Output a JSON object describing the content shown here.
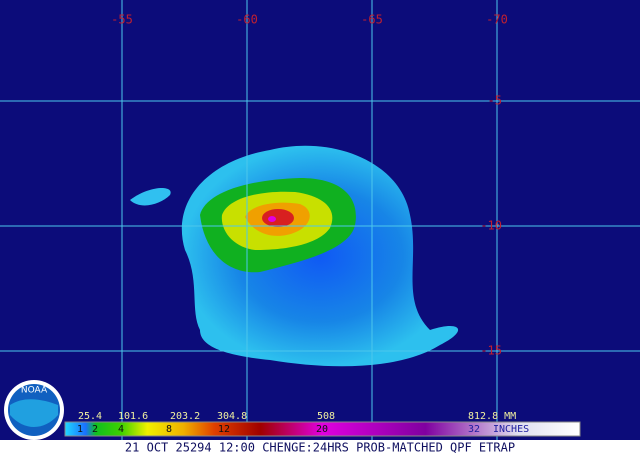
{
  "map": {
    "longitude_labels": [
      "-55",
      "-60",
      "-65",
      "-70"
    ],
    "latitude_labels": [
      "-5",
      "-10",
      "-15"
    ],
    "legend": {
      "mm_labels": [
        "25.4",
        "101.6",
        "203.2",
        "304.8",
        "508",
        "812.8 MM"
      ],
      "inch_labels": [
        "1",
        "2",
        "4",
        "8",
        "12",
        "20",
        "32",
        "INCHES"
      ]
    },
    "caption": "21 OCT 25294 12:00 CHENGE:24HRS PROB-MATCHED QPF ETRAP",
    "logo": "NOAA"
  }
}
